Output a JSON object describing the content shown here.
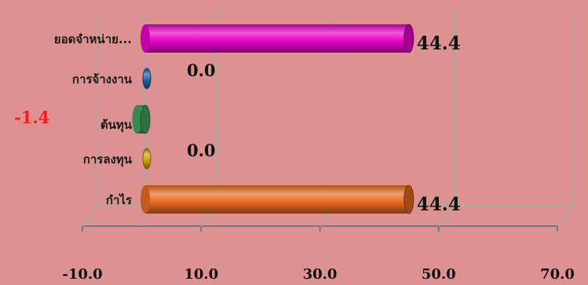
{
  "chart_data": {
    "type": "bar",
    "orientation": "horizontal",
    "style": "3d-cylinder",
    "categories": [
      "ยอดจำหน่าย...",
      "การจ้างงาน",
      "ต้นทุน",
      "การลงทุน",
      "กำไร"
    ],
    "values": [
      44.4,
      0.0,
      -1.4,
      0.0,
      44.4
    ],
    "value_labels": [
      "44.4",
      "0.0",
      "-1.4",
      "0.0",
      "44.4"
    ],
    "colors": [
      "#e600c8",
      "#1a5fa8",
      "#3fa35a",
      "#c8a000",
      "#e86a1e"
    ],
    "x_ticks": [
      "-10.0",
      "10.0",
      "30.0",
      "50.0",
      "70.0"
    ],
    "xlim": [
      -10,
      70
    ],
    "grid": true,
    "legend": "none"
  }
}
